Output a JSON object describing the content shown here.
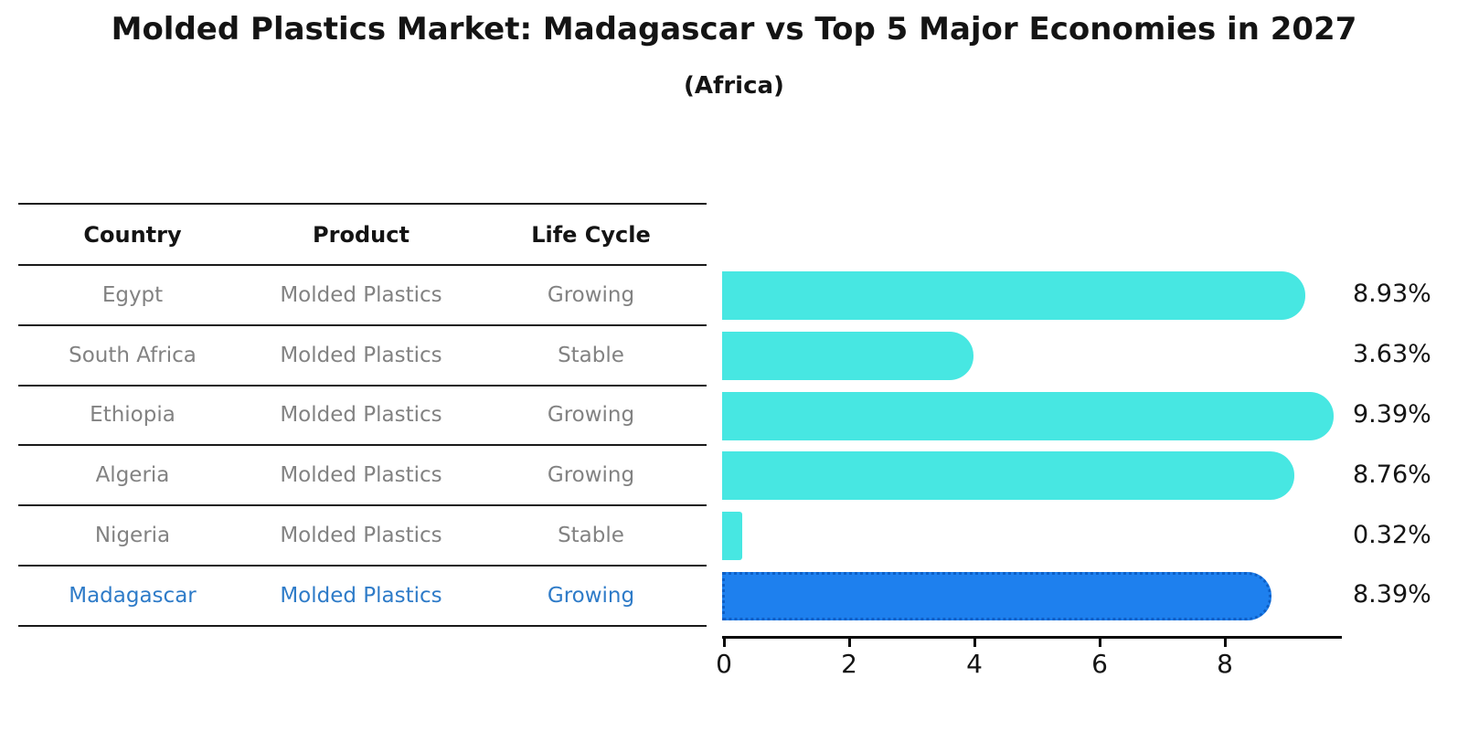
{
  "title": "Molded Plastics Market: Madagascar vs Top 5 Major Economies in 2027",
  "subtitle": "(Africa)",
  "table": {
    "headers": [
      "Country",
      "Product",
      "Life Cycle"
    ],
    "rows": [
      {
        "country": "Egypt",
        "product": "Molded Plastics",
        "life_cycle": "Growing",
        "highlighted": false
      },
      {
        "country": "South Africa",
        "product": "Molded Plastics",
        "life_cycle": "Stable",
        "highlighted": false
      },
      {
        "country": "Ethiopia",
        "product": "Molded Plastics",
        "life_cycle": "Growing",
        "highlighted": false
      },
      {
        "country": "Algeria",
        "product": "Molded Plastics",
        "life_cycle": "Growing",
        "highlighted": false
      },
      {
        "country": "Nigeria",
        "product": "Molded Plastics",
        "life_cycle": "Stable",
        "highlighted": false
      },
      {
        "country": "Madagascar",
        "product": "Molded Plastics",
        "life_cycle": "Growing",
        "highlighted": true
      }
    ]
  },
  "chart_data": {
    "type": "bar",
    "orientation": "horizontal",
    "title": "Molded Plastics Market: Madagascar vs Top 5 Major Economies in 2027",
    "subtitle": "(Africa)",
    "categories": [
      "Egypt",
      "South Africa",
      "Ethiopia",
      "Algeria",
      "Nigeria",
      "Madagascar"
    ],
    "values": [
      8.93,
      3.63,
      9.39,
      8.76,
      0.32,
      8.39
    ],
    "value_labels": [
      "8.93%",
      "3.63%",
      "9.39%",
      "8.76%",
      "0.32%",
      "8.39%"
    ],
    "highlight_index": 5,
    "xlabel": "",
    "ylabel": "",
    "xlim": [
      0,
      9.9
    ],
    "xticks": [
      0,
      2,
      4,
      6,
      8
    ],
    "grid": false,
    "legend_position": "none",
    "bar_color": "#47e7e2",
    "highlight_bar_color": "#1e80ee",
    "highlight_text_color": "#2e7bc8"
  }
}
